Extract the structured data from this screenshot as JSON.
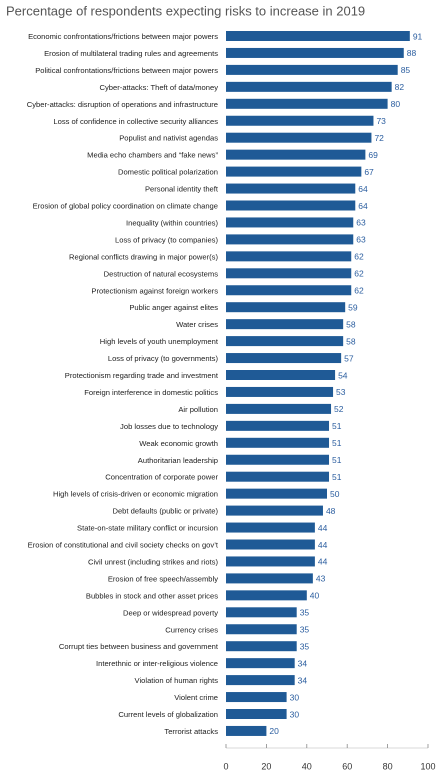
{
  "chart_data": {
    "type": "hbar",
    "title": "Percentage of respondents expecting risks to increase in 2019",
    "categories": [
      "Economic confrontations/frictions between major powers",
      "Erosion of multilateral trading rules and agreements",
      "Political confrontations/frictions between major powers",
      "Cyber-attacks: Theft of data/money",
      "Cyber-attacks: disruption of operations and infrastructure",
      "Loss of confidence in collective security alliances",
      "Populist and nativist agendas",
      "Media echo chambers and “fake news”",
      "Domestic political polarization",
      "Personal identity theft",
      "Erosion of global policy coordination on climate change",
      "Inequality (within countries)",
      "Loss of privacy (to companies)",
      "Regional conflicts drawing in major power(s)",
      "Destruction of natural ecosystems",
      "Protectionism against foreign workers",
      "Public anger against elites",
      "Water crises",
      "High levels of youth unemployment",
      "Loss of privacy (to governments)",
      "Protectionism regarding trade and investment",
      "Foreign interference in domestic politics",
      "Air pollution",
      "Job losses due to technology",
      "Weak economic growth",
      "Authoritarian leadership",
      "Concentration of corporate power",
      "High levels of crisis-driven or economic migration",
      "Debt defaults (public or private)",
      "State-on-state military conflict or incursion",
      "Erosion of constitutional and civil society checks on gov’t",
      "Civil unrest (including strikes and riots)",
      "Erosion of free speech/assembly",
      "Bubbles in stock and other asset prices",
      "Deep or widespread poverty",
      "Currency crises",
      "Corrupt ties between business and government",
      "Interethnic or inter-religious violence",
      "Violation of human rights",
      "Violent crime",
      "Current levels of globalization",
      "Terrorist attacks"
    ],
    "values": [
      91,
      88,
      85,
      82,
      80,
      73,
      72,
      69,
      67,
      64,
      64,
      63,
      63,
      62,
      62,
      62,
      59,
      58,
      58,
      57,
      54,
      53,
      52,
      51,
      51,
      51,
      51,
      50,
      48,
      44,
      44,
      44,
      43,
      40,
      35,
      35,
      35,
      34,
      34,
      30,
      30,
      20
    ],
    "color": "#1f5a96",
    "xlim": [
      0,
      100
    ],
    "xticks": [
      0,
      20,
      40,
      60,
      80,
      100
    ]
  }
}
